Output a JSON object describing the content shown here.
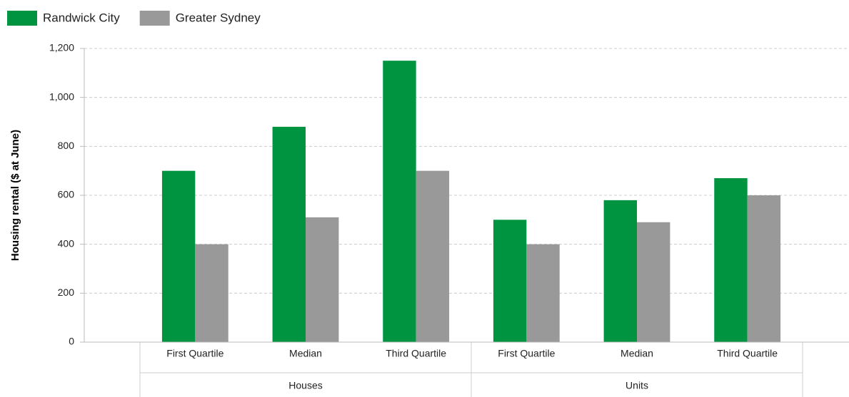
{
  "chart_data": {
    "type": "bar",
    "y_label": "Housing rental ($ at June)",
    "groups": [
      {
        "name": "Houses",
        "categories": [
          "First Quartile",
          "Median",
          "Third Quartile"
        ]
      },
      {
        "name": "Units",
        "categories": [
          "First Quartile",
          "Median",
          "Third Quartile"
        ]
      }
    ],
    "series": [
      {
        "name": "Randwick City",
        "color": "#009440",
        "values": [
          700,
          880,
          1150,
          500,
          580,
          670
        ]
      },
      {
        "name": "Greater Sydney",
        "color": "#999999",
        "values": [
          400,
          510,
          700,
          400,
          490,
          600
        ]
      }
    ],
    "ylim": [
      0,
      1200
    ],
    "yticks": [
      0,
      200,
      400,
      600,
      800,
      {
        "value": 1000,
        "label": "1,000"
      },
      {
        "value": 1200,
        "label": "1,200"
      }
    ],
    "grid": true,
    "legend": "top-left"
  }
}
